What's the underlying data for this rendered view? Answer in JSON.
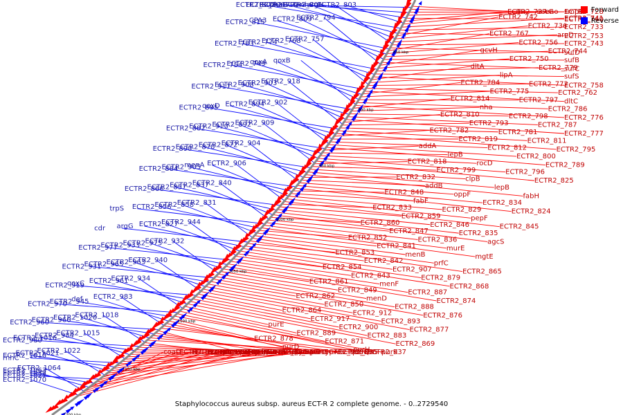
{
  "title": "Staphylococcus aureus subsp. aureus ECT-R 2 complete genome. - 0..2729540",
  "legend": [
    {
      "label": "Forward",
      "color": "#ff0000"
    },
    {
      "label": "Reverse",
      "color": "#0000ff"
    }
  ],
  "colors": {
    "forward": "#ff0000",
    "reverse": "#0000ff",
    "forward_text": "#c00000",
    "reverse_text": "#1a1aa6",
    "backbone": "#888888"
  },
  "scale_ticks": [
    "850 kbp",
    "900 kbp",
    "950 kbp",
    "1000 kbp",
    "1050 kbp",
    "1100 kbp",
    "1150 kbp",
    "1200 kbp"
  ],
  "reverse_labels": [
    "ECTR2_806",
    "phaD",
    "mnhC",
    "ECTR2_803",
    "ECTR2_802",
    "ECTR2_792",
    "ECTR2_801",
    "argH",
    "ECTR2_815",
    "CPA3",
    "ECTR2_809",
    "ECTR2_794",
    "ECTR2_783",
    "ECTR2_774",
    "ECTR2_768",
    "ECTR2_757",
    "ECTR2_754",
    "ECTR2_749",
    "qoxA",
    "qoxB",
    "ECTR2_911",
    "ECTR2_908",
    "ECTR2_903",
    "ECTR2_918",
    "ECTR2_895",
    "qoxD",
    "ECTR2_894",
    "ECTR2_902",
    "ECTR2_882",
    "ECTR2_910",
    "ECTR2_892",
    "ECTR2_909",
    "ECTR2_890",
    "ECTR2_870",
    "ECTR2_872",
    "ECTR2_904",
    "ECTR2_884",
    "ECTR2_905",
    "menA",
    "ECTR2_906",
    "ECTR2_866",
    "ECTR2_857",
    "ECTR2_837",
    "ECTR2_840",
    "trpS",
    "ECTR2_856",
    "ECTR2_858",
    "ECTR2_831",
    "cdr",
    "argG",
    "ECTR2_827",
    "ECTR2_944",
    "ECTR2_977",
    "ECTR2_933",
    "ECTR2_975",
    "ECTR2_932",
    "ECTR2_931",
    "ECTR2_965",
    "ECTR2_963",
    "ECTR2_940",
    "ECTR2_919",
    "qoxC",
    "ECTR2_961",
    "ECTR2_934",
    "ECTR2_970",
    "ECTR2_945",
    "def",
    "ECTR2_983",
    "ECTR2_960",
    "ECTR2_966",
    "ECTR2_1020",
    "ECTR2_1018",
    "ECTR2_980",
    "ECTR2_1016",
    "ECTR2_984",
    "ECTR2_1015",
    "rnhC",
    "ECTR2_1010",
    "ECTR2_1021",
    "ECTR2_1022",
    "ECTR2_1027",
    "ECTR2_1032",
    "ECTR2_1063",
    "ECTR2_1064",
    "ECTR2_1070"
  ],
  "forward_labels": [
    "rnr",
    "eno",
    "smpB",
    "ECTR2_728",
    "ECTR2_740",
    "ECTR2_737",
    "secG",
    "ECTR2_741",
    "ECTR2_733",
    "ECTR2_753",
    "ECTR2_742",
    "ECTR2_736",
    "aroD",
    "ECTR2_743",
    "sufD",
    "ECTR2_767",
    "ECTR2_756",
    "ECTR2_744",
    "sufB",
    "sufC",
    "gcvH",
    "ECTR2_750",
    "ECTR2_779",
    "sufS",
    "ECTR2_758",
    "dltA",
    "lipA",
    "ECTR2_772",
    "ECTR2_762",
    "dltC",
    "ECTR2_784",
    "ECTR2_775",
    "ECTR2_797",
    "ECTR2_786",
    "ECTR2_776",
    "ECTR2_814",
    "nha",
    "ECTR2_798",
    "ECTR2_787",
    "ECTR2_777",
    "ECTR2_810",
    "ECTR2_793",
    "ECTR2_781",
    "ECTR2_811",
    "ECTR2_795",
    "ECTR2_782",
    "ECTR2_819",
    "ECTR2_812",
    "ECTR2_800",
    "ECTR2_789",
    "addA",
    "lepB",
    "rocD",
    "ECTR2_796",
    "ECTR2_825",
    "ECTR2_818",
    "ECTR2_799",
    "clpB",
    "lepB",
    "fabH",
    "ECTR2_832",
    "addB",
    "oppF",
    "ECTR2_834",
    "ECTR2_824",
    "ECTR2_848",
    "fabF",
    "ECTR2_829",
    "pepF",
    "ECTR2_845",
    "ECTR2_833",
    "ECTR2_859",
    "ECTR2_846",
    "ECTR2_835",
    "agcS",
    "ECTR2_860",
    "ECTR2_847",
    "ECTR2_836",
    "murE",
    "mgtE",
    "ECTR2_852",
    "ECTR2_841",
    "menB",
    "prfC",
    "ECTR2_865",
    "ECTR2_853",
    "ECTR2_842",
    "ECTR2_907",
    "ECTR2_879",
    "ECTR2_868",
    "ECTR2_854",
    "ECTR2_843",
    "menF",
    "ECTR2_887",
    "ECTR2_874",
    "ECTR2_861",
    "ECTR2_849",
    "menD",
    "ECTR2_888",
    "ECTR2_876",
    "ECTR2_862",
    "ECTR2_850",
    "ECTR2_912",
    "ECTR2_893",
    "ECTR2_877",
    "ECTR2_864",
    "ECTR2_917",
    "ECTR2_900",
    "ECTR2_883",
    "ECTR2_869",
    "purE",
    "ECTR2_889",
    "ECTR2_871",
    "purH",
    "purK",
    "ECTR2_878",
    "purD",
    "purC",
    "ECTR2_885",
    "ECTR2_937",
    "purS",
    "ECTR2_886",
    "pdhA",
    "ECTR2_938",
    "purQ",
    "ECTR2_891",
    "lpdA",
    "ptsP",
    "purL",
    "ECTR2_896",
    "ECTR2_958",
    "ECTR2_941",
    "purF",
    "pyc",
    "typA",
    "ECTR2_942",
    "purM",
    "cyoE",
    "ECTR2_957",
    "srtB",
    "ECTR2_974",
    "ECTR2_959",
    "ECTR2_943",
    "purN",
    "phe5",
    "coaD",
    "ECTR2_967",
    "ECTR2_949",
    "ECTR2_935"
  ]
}
